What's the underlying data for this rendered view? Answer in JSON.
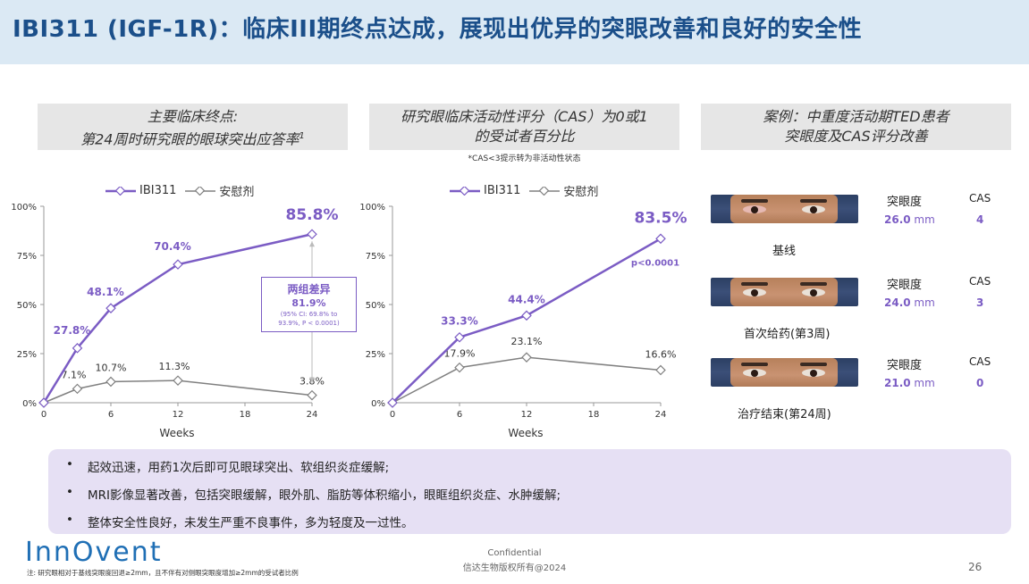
{
  "header": {
    "title": "IBI311 (IGF-1R)：临床III期终点达成，展现出优异的突眼改善和良好的安全性"
  },
  "panel1": {
    "title_line1": "主要临床终点:",
    "title_line2": "第24周时研究眼的眼球突出应答率",
    "title_sup": "1"
  },
  "panel2": {
    "title_line1": "研究眼临床活动性评分（CAS）为0或1",
    "title_line2": "的受试者百分比",
    "note": "*CAS<3提示转为非活动性状态"
  },
  "panel3": {
    "title_line1": "案例：中重度活动期TED患者",
    "title_line2": "突眼度及CAS评分改善"
  },
  "legend": {
    "series1": "IBI311",
    "series2": "安慰剂"
  },
  "diff_box": {
    "title": "两组差异",
    "value": "81.9%",
    "ci_line1": "(95% CI: 69.8% to",
    "ci_line2": "93.9%, P < 0.0001)"
  },
  "chart_data": [
    {
      "type": "line",
      "xlabel": "Weeks",
      "x_ticks": [
        0,
        6,
        12,
        18,
        24
      ],
      "y_ticks": [
        "0%",
        "25%",
        "50%",
        "75%",
        "100%"
      ],
      "xlim": [
        0,
        24
      ],
      "ylim": [
        0,
        100
      ],
      "series": [
        {
          "name": "IBI311",
          "color": "#7b5cc4",
          "x": [
            0,
            3,
            6,
            12,
            24
          ],
          "y": [
            0,
            27.8,
            48.1,
            70.4,
            85.8
          ],
          "labels": [
            "",
            "27.8%",
            "48.1%",
            "70.4%",
            "85.8%"
          ]
        },
        {
          "name": "安慰剂",
          "color": "#808080",
          "x": [
            0,
            3,
            6,
            12,
            24
          ],
          "y": [
            0,
            7.1,
            10.7,
            11.3,
            3.8
          ],
          "labels": [
            "",
            "7.1%",
            "10.7%",
            "11.3%",
            "3.8%"
          ]
        }
      ]
    },
    {
      "type": "line",
      "xlabel": "Weeks",
      "x_ticks": [
        0,
        6,
        12,
        18,
        24
      ],
      "y_ticks": [
        "0%",
        "25%",
        "50%",
        "75%",
        "100%"
      ],
      "xlim": [
        0,
        24
      ],
      "ylim": [
        0,
        100
      ],
      "annotation": "p<0.0001",
      "series": [
        {
          "name": "IBI311",
          "color": "#7b5cc4",
          "x": [
            0,
            6,
            12,
            24
          ],
          "y": [
            0,
            33.3,
            44.4,
            83.5
          ],
          "labels": [
            "",
            "33.3%",
            "44.4%",
            "83.5%"
          ]
        },
        {
          "name": "安慰剂",
          "color": "#808080",
          "x": [
            0,
            6,
            12,
            24
          ],
          "y": [
            0,
            17.9,
            23.1,
            16.6
          ],
          "labels": [
            "",
            "17.9%",
            "23.1%",
            "16.6%"
          ]
        }
      ]
    }
  ],
  "cases": [
    {
      "label": "基线",
      "proptosis_header": "突眼度",
      "cas_header": "CAS",
      "proptosis_value": "26.0",
      "unit": " mm",
      "cas_value": "4"
    },
    {
      "label": "首次给药(第3周)",
      "proptosis_header": "突眼度",
      "cas_header": "CAS",
      "proptosis_value": "24.0",
      "unit": " mm",
      "cas_value": "3"
    },
    {
      "label": "治疗结束(第24周)",
      "proptosis_header": "突眼度",
      "cas_header": "CAS",
      "proptosis_value": "21.0",
      "unit": " mm",
      "cas_value": "0"
    }
  ],
  "bullets": [
    "起效迅速，用药1次后即可见眼球突出、软组织炎症缓解;",
    "MRI影像显著改善，包括突眼缓解，眼外肌、脂肪等体积缩小，眼眶组织炎症、水肿缓解;",
    "整体安全性良好，未发生严重不良事件，多为轻度及一过性。"
  ],
  "bullet_symbol": "•",
  "footer": {
    "logo": "InnOvent",
    "footnote": "注: 研究眼相对于基线突眼度回退≥2mm，且不伴有对侧眼突眼度增加≥2mm的受试者比例",
    "confidential": "Confidential",
    "copyright": "信达生物版权所有@2024",
    "page": "26"
  },
  "colors": {
    "accent": "#7b5cc4",
    "placebo": "#808080",
    "header_bg": "#dbe9f4",
    "title_blue": "#1b4f8a"
  }
}
